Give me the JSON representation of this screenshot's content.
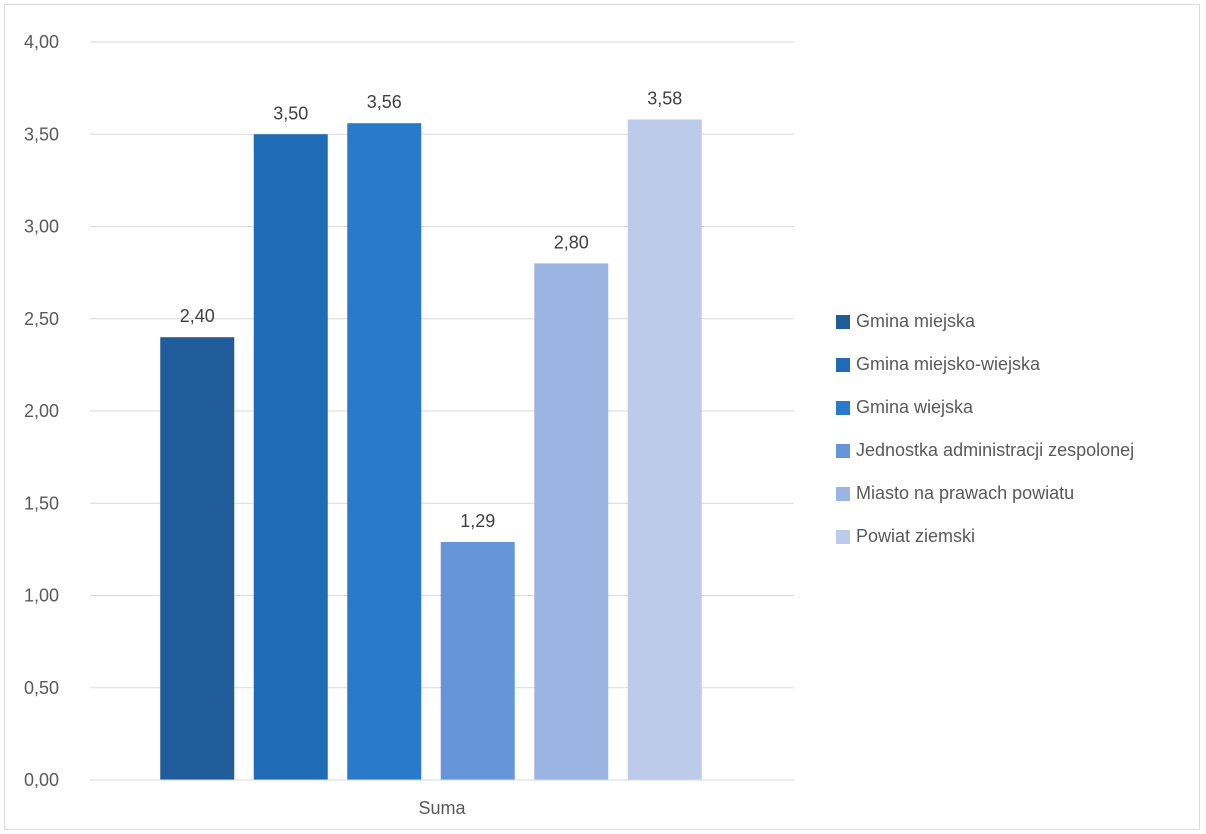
{
  "chart_data": {
    "type": "bar",
    "categories": [
      "Suma"
    ],
    "series": [
      {
        "name": "Gmina miejska",
        "values": [
          2.4
        ],
        "color": "#1f5c99",
        "label": "2,40"
      },
      {
        "name": "Gmina miejsko-wiejska",
        "values": [
          3.5
        ],
        "color": "#1f6bb5",
        "label": "3,50"
      },
      {
        "name": "Gmina wiejska",
        "values": [
          3.56
        ],
        "color": "#2a7acc",
        "label": "3,56"
      },
      {
        "name": "Jednostka administracji zespolonej",
        "values": [
          1.29
        ],
        "color": "#6596d9",
        "label": "1,29"
      },
      {
        "name": "Miasto na prawach powiatu",
        "values": [
          2.8
        ],
        "color": "#9bb5e2",
        "label": "2,80"
      },
      {
        "name": "Powiat ziemski",
        "values": [
          3.58
        ],
        "color": "#bccbea",
        "label": "3,58"
      }
    ],
    "y_ticks": [
      {
        "value": 0,
        "label": "0,00"
      },
      {
        "value": 0.5,
        "label": "0,50"
      },
      {
        "value": 1,
        "label": "1,00"
      },
      {
        "value": 1.5,
        "label": "1,50"
      },
      {
        "value": 2,
        "label": "2,00"
      },
      {
        "value": 2.5,
        "label": "2,50"
      },
      {
        "value": 3,
        "label": "3,00"
      },
      {
        "value": 3.5,
        "label": "3,50"
      },
      {
        "value": 4,
        "label": "4,00"
      }
    ],
    "ylim": [
      0,
      4
    ],
    "title": "",
    "xlabel": "",
    "ylabel": "",
    "grid": true,
    "legend_position": "right"
  }
}
